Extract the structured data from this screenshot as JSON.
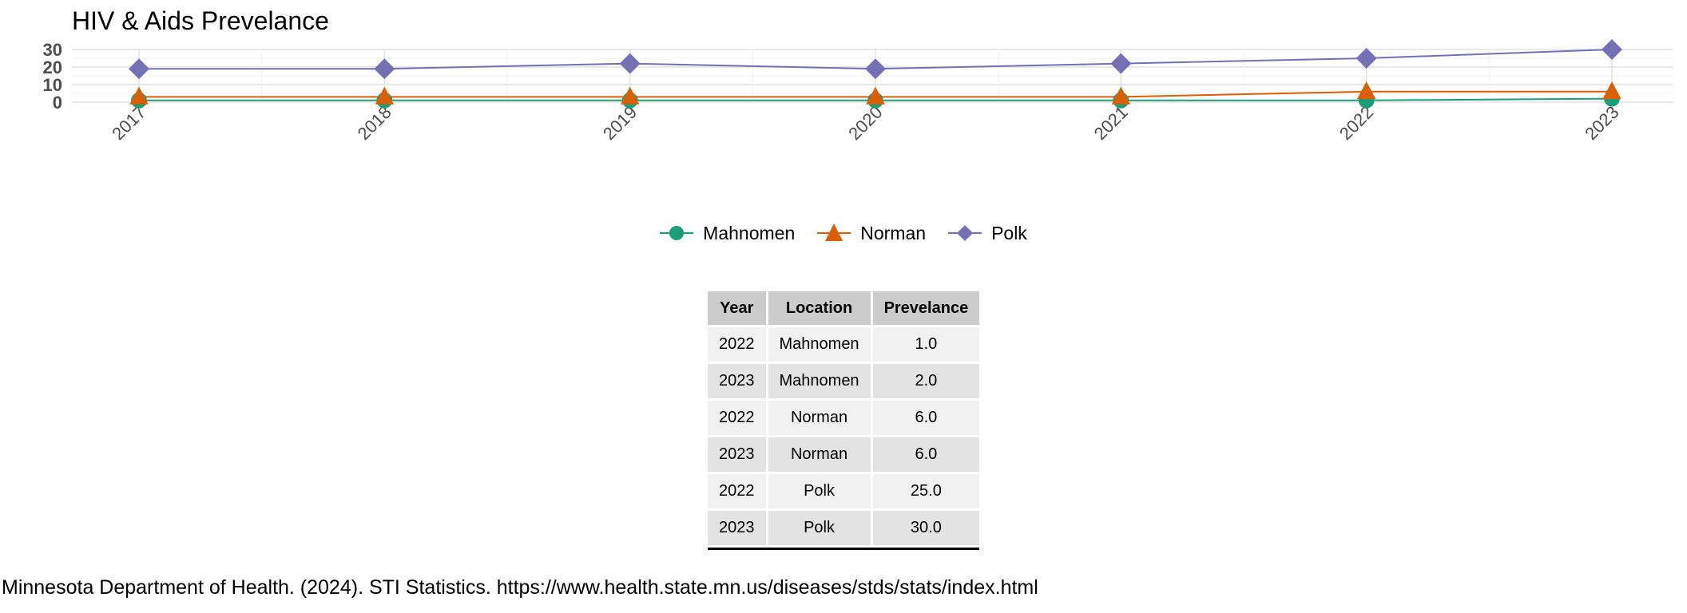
{
  "chart_data": {
    "type": "line",
    "title": "HIV & Aids Prevelance",
    "xlabel": "",
    "ylabel": "",
    "categories": [
      "2017",
      "2018",
      "2019",
      "2020",
      "2021",
      "2022",
      "2023"
    ],
    "ylim": [
      0,
      30
    ],
    "yticks": [
      "0",
      "10",
      "20",
      "30"
    ],
    "grid": true,
    "legend_position": "bottom",
    "series": [
      {
        "name": "Mahnomen",
        "marker": "circle",
        "color": "#1b9e77",
        "values": [
          1,
          1,
          1,
          1,
          1,
          1,
          2
        ]
      },
      {
        "name": "Norman",
        "marker": "triangle",
        "color": "#d95f02",
        "values": [
          3,
          3,
          3,
          3,
          3,
          6,
          6
        ]
      },
      {
        "name": "Polk",
        "marker": "diamond",
        "color": "#7570b3",
        "values": [
          19,
          19,
          22,
          19,
          22,
          25,
          30
        ]
      }
    ]
  },
  "table": {
    "headers": [
      "Year",
      "Location",
      "Prevelance"
    ],
    "rows": [
      [
        "2022",
        "Mahnomen",
        "1.0"
      ],
      [
        "2023",
        "Mahnomen",
        "2.0"
      ],
      [
        "2022",
        "Norman",
        "6.0"
      ],
      [
        "2023",
        "Norman",
        "6.0"
      ],
      [
        "2022",
        "Polk",
        "25.0"
      ],
      [
        "2023",
        "Polk",
        "30.0"
      ]
    ]
  },
  "source": "Minnesota Department of Health. (2024). STI Statistics. https://www.health.state.mn.us/diseases/stds/stats/index.html"
}
